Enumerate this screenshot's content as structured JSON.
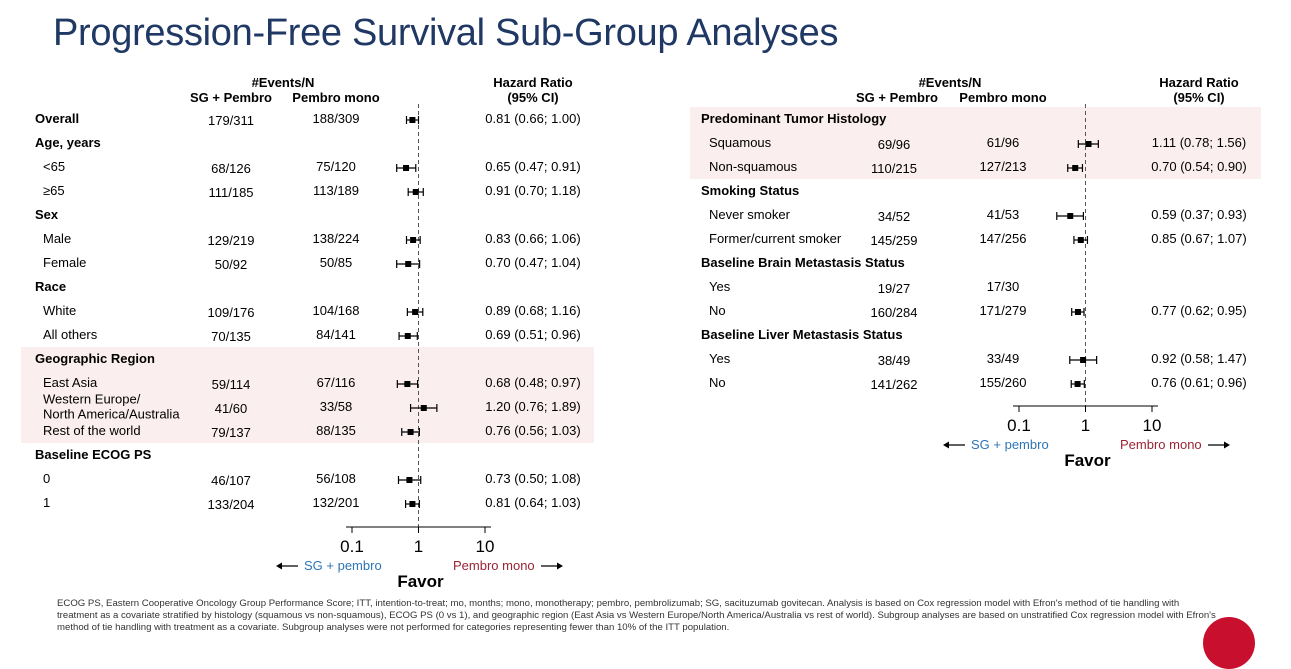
{
  "page_title": "Progression-Free Survival Sub-Group Analyses",
  "footnote": "ECOG PS, Eastern Cooperative Oncology Group Performance Score; ITT, intention-to-treat; mo, months; mono, monotherapy; pembro, pembrolizumab; SG, sacituzumab govitecan. Analysis is based on Cox regression model with Efron's method of tie handling with treatment as a covariate stratified by histology (squamous vs non-squamous), ECOG PS (0 vs 1), and geographic region (East Asia vs Western Europe/North America/Australia vs rest of world). Subgroup analyses are based on unstratified Cox regression model with Efron's method of tie handling with treatment as a covariate. Subgroup analyses were not performed for categories representing fewer than 10% of the ITT population.",
  "colors": {
    "title": "#1f3864",
    "highlight_band": "#fbeeee",
    "sg_label": "#2e75b6",
    "pembro_label": "#9b2335"
  },
  "chart_data": [
    {
      "type": "forest",
      "header_events": "#Events/N",
      "col_sg": "SG + Pembro",
      "col_pembro": "Pembro mono",
      "col_hr": "Hazard Ratio",
      "col_ci": "(95% CI)",
      "xscale": "log",
      "xlim": [
        0.1,
        10
      ],
      "xticks": [
        0.1,
        1,
        10
      ],
      "xtick_labels": [
        "0.1",
        "1",
        "10"
      ],
      "reference_line": 1,
      "favor_label": "Favor",
      "favor_left": "SG + pembro",
      "favor_right": "Pembro mono",
      "rows": [
        {
          "label": "Overall",
          "header": true,
          "sg": "179/311",
          "pembro": "188/309",
          "hr": 0.81,
          "lo": 0.66,
          "hi": 1.0,
          "hr_text": "0.81 (0.66; 1.00)",
          "band": false
        },
        {
          "label": "Age, years",
          "header": true,
          "band": false
        },
        {
          "label": "<65",
          "sg": "68/126",
          "pembro": "75/120",
          "hr": 0.65,
          "lo": 0.47,
          "hi": 0.91,
          "hr_text": "0.65 (0.47; 0.91)",
          "band": false
        },
        {
          "label": "≥65",
          "sg": "111/185",
          "pembro": "113/189",
          "hr": 0.91,
          "lo": 0.7,
          "hi": 1.18,
          "hr_text": "0.91 (0.70; 1.18)",
          "band": false
        },
        {
          "label": "Sex",
          "header": true,
          "band": false
        },
        {
          "label": "Male",
          "sg": "129/219",
          "pembro": "138/224",
          "hr": 0.83,
          "lo": 0.66,
          "hi": 1.06,
          "hr_text": "0.83 (0.66; 1.06)",
          "band": false
        },
        {
          "label": "Female",
          "sg": "50/92",
          "pembro": "50/85",
          "hr": 0.7,
          "lo": 0.47,
          "hi": 1.04,
          "hr_text": "0.70 (0.47; 1.04)",
          "band": false
        },
        {
          "label": "Race",
          "header": true,
          "band": false
        },
        {
          "label": "White",
          "sg": "109/176",
          "pembro": "104/168",
          "hr": 0.89,
          "lo": 0.68,
          "hi": 1.16,
          "hr_text": "0.89 (0.68; 1.16)",
          "band": false
        },
        {
          "label": "All others",
          "sg": "70/135",
          "pembro": "84/141",
          "hr": 0.69,
          "lo": 0.51,
          "hi": 0.96,
          "hr_text": "0.69 (0.51; 0.96)",
          "band": false
        },
        {
          "label": "Geographic Region",
          "header": true,
          "band": true
        },
        {
          "label": "East Asia",
          "sg": "59/114",
          "pembro": "67/116",
          "hr": 0.68,
          "lo": 0.48,
          "hi": 0.97,
          "hr_text": "0.68 (0.48; 0.97)",
          "band": true
        },
        {
          "label": "Western Europe/\nNorth America/Australia",
          "sg": "41/60",
          "pembro": "33/58",
          "hr": 1.2,
          "lo": 0.76,
          "hi": 1.89,
          "hr_text": "1.20 (0.76; 1.89)",
          "band": true
        },
        {
          "label": "Rest of the world",
          "sg": "79/137",
          "pembro": "88/135",
          "hr": 0.76,
          "lo": 0.56,
          "hi": 1.03,
          "hr_text": "0.76 (0.56; 1.03)",
          "band": true
        },
        {
          "label": "Baseline ECOG PS",
          "header": true,
          "band": false
        },
        {
          "label": "0",
          "sg": "46/107",
          "pembro": "56/108",
          "hr": 0.73,
          "lo": 0.5,
          "hi": 1.08,
          "hr_text": "0.73 (0.50; 1.08)",
          "band": false
        },
        {
          "label": "1",
          "sg": "133/204",
          "pembro": "132/201",
          "hr": 0.81,
          "lo": 0.64,
          "hi": 1.03,
          "hr_text": "0.81 (0.64; 1.03)",
          "band": false
        }
      ]
    },
    {
      "type": "forest",
      "header_events": "#Events/N",
      "col_sg": "SG + Pembro",
      "col_pembro": "Pembro mono",
      "col_hr": "Hazard Ratio",
      "col_ci": "(95% CI)",
      "xscale": "log",
      "xlim": [
        0.1,
        10
      ],
      "xticks": [
        0.1,
        1,
        10
      ],
      "xtick_labels": [
        "0.1",
        "1",
        "10"
      ],
      "reference_line": 1,
      "favor_label": "Favor",
      "favor_left": "SG + pembro",
      "favor_right": "Pembro mono",
      "rows": [
        {
          "label": "Predominant Tumor Histology",
          "header": true,
          "band": true
        },
        {
          "label": "Squamous",
          "sg": "69/96",
          "pembro": "61/96",
          "hr": 1.11,
          "lo": 0.78,
          "hi": 1.56,
          "hr_text": "1.11 (0.78; 1.56)",
          "band": true
        },
        {
          "label": "Non-squamous",
          "sg": "110/215",
          "pembro": "127/213",
          "hr": 0.7,
          "lo": 0.54,
          "hi": 0.9,
          "hr_text": "0.70 (0.54; 0.90)",
          "band": true
        },
        {
          "label": "Smoking Status",
          "header": true,
          "band": false
        },
        {
          "label": "Never smoker",
          "sg": "34/52",
          "pembro": "41/53",
          "hr": 0.59,
          "lo": 0.37,
          "hi": 0.93,
          "hr_text": "0.59 (0.37; 0.93)",
          "band": false
        },
        {
          "label": "Former/current smoker",
          "sg": "145/259",
          "pembro": "147/256",
          "hr": 0.85,
          "lo": 0.67,
          "hi": 1.07,
          "hr_text": "0.85 (0.67; 1.07)",
          "band": false
        },
        {
          "label": "Baseline Brain Metastasis Status",
          "header": true,
          "band": false
        },
        {
          "label": "Yes",
          "sg": "19/27",
          "pembro": "17/30",
          "band": false
        },
        {
          "label": "No",
          "sg": "160/284",
          "pembro": "171/279",
          "hr": 0.77,
          "lo": 0.62,
          "hi": 0.95,
          "hr_text": "0.77 (0.62; 0.95)",
          "band": false
        },
        {
          "label": "Baseline Liver Metastasis Status",
          "header": true,
          "band": false
        },
        {
          "label": "Yes",
          "sg": "38/49",
          "pembro": "33/49",
          "hr": 0.92,
          "lo": 0.58,
          "hi": 1.47,
          "hr_text": "0.92 (0.58; 1.47)",
          "band": false
        },
        {
          "label": "No",
          "sg": "141/262",
          "pembro": "155/260",
          "hr": 0.76,
          "lo": 0.61,
          "hi": 0.96,
          "hr_text": "0.76 (0.61; 0.96)",
          "band": false
        }
      ]
    }
  ]
}
